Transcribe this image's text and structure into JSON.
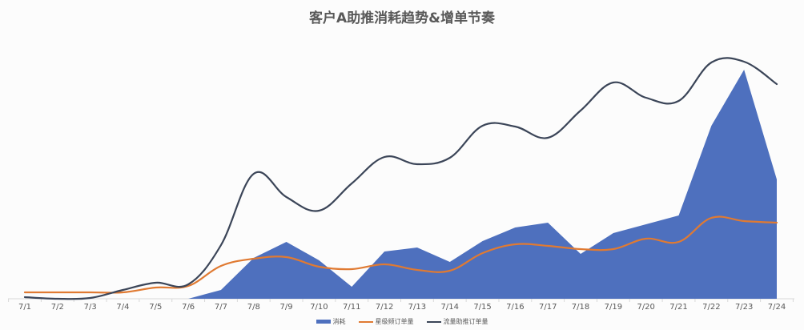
{
  "chart_data": {
    "type": "area+line",
    "title": "客户A助推消耗趋势&增单节奏",
    "xlabel": "",
    "ylabel": "",
    "categories": [
      "7/1",
      "7/2",
      "7/3",
      "7/4",
      "7/5",
      "7/6",
      "7/7",
      "7/8",
      "7/9",
      "7/10",
      "7/11",
      "7/12",
      "7/13",
      "7/14",
      "7/15",
      "7/16",
      "7/17",
      "7/18",
      "7/19",
      "7/20",
      "7/21",
      "7/22",
      "7/23",
      "7/24"
    ],
    "grid": false,
    "legend_position": "bottom",
    "ylim": [
      0,
      300
    ],
    "series": [
      {
        "name": "消耗",
        "type": "area",
        "color": "#4e70be",
        "values": [
          0,
          0,
          0,
          0,
          0,
          0,
          11,
          51,
          71,
          48,
          15,
          59,
          64,
          46,
          72,
          89,
          95,
          56,
          82,
          93,
          104,
          216,
          286,
          149
        ]
      },
      {
        "name": "星级频订单量",
        "type": "line",
        "color": "#e07a32",
        "values": [
          8,
          8,
          8,
          8,
          14,
          16,
          41,
          50,
          52,
          40,
          37,
          43,
          36,
          35,
          57,
          68,
          66,
          62,
          62,
          75,
          71,
          101,
          97,
          95
        ]
      },
      {
        "name": "流量助推订单量",
        "type": "line",
        "color": "#3b4558",
        "values": [
          2,
          0,
          1,
          11,
          20,
          18,
          67,
          156,
          127,
          110,
          144,
          177,
          168,
          176,
          216,
          215,
          201,
          235,
          270,
          251,
          247,
          295,
          296,
          268
        ]
      }
    ]
  }
}
